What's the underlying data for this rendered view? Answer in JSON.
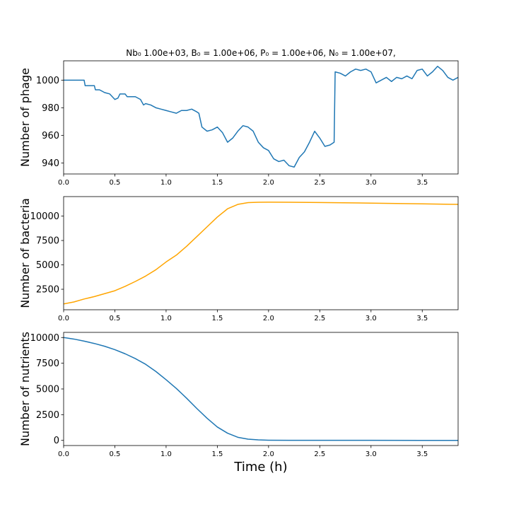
{
  "figure": {
    "title": "Nb₀ 1.00e+03, B₀ = 1.00e+06, P₀ = 1.00e+06, N₀ = 1.00e+07,",
    "xlabel": "Time (h)"
  },
  "chart_data": [
    {
      "type": "line",
      "ylabel": "Number of phage",
      "xlim": [
        0,
        3.85
      ],
      "ylim": [
        932,
        1014
      ],
      "xticks": [
        0.0,
        0.5,
        1.0,
        1.5,
        2.0,
        2.5,
        3.0,
        3.5
      ],
      "yticks": [
        940,
        960,
        980,
        1000
      ],
      "color": "#1f77b4",
      "series": [
        {
          "x": [
            0.0,
            0.2,
            0.21,
            0.3,
            0.31,
            0.35,
            0.4,
            0.45,
            0.5,
            0.53,
            0.55,
            0.6,
            0.62,
            0.7,
            0.75,
            0.78,
            0.8,
            0.85,
            0.9,
            0.95,
            1.0,
            1.05,
            1.1,
            1.15,
            1.2,
            1.25,
            1.3,
            1.32,
            1.35,
            1.4,
            1.45,
            1.5,
            1.55,
            1.6,
            1.65,
            1.7,
            1.75,
            1.8,
            1.85,
            1.9,
            1.95,
            2.0,
            2.05,
            2.1,
            2.15,
            2.2,
            2.25,
            2.3,
            2.35,
            2.4,
            2.45,
            2.5,
            2.55,
            2.6,
            2.64,
            2.65,
            2.7,
            2.75,
            2.8,
            2.85,
            2.9,
            2.95,
            3.0,
            3.05,
            3.1,
            3.15,
            3.2,
            3.25,
            3.3,
            3.35,
            3.4,
            3.45,
            3.5,
            3.55,
            3.6,
            3.65,
            3.7,
            3.75,
            3.8,
            3.85
          ],
          "y": [
            1000,
            1000,
            996,
            996,
            993,
            993,
            991,
            990,
            986,
            987,
            990,
            990,
            988,
            988,
            986,
            982,
            983,
            982,
            980,
            979,
            978,
            977,
            976,
            978,
            978,
            979,
            977,
            976,
            966,
            963,
            964,
            966,
            962,
            955,
            958,
            963,
            967,
            966,
            963,
            955,
            951,
            949,
            943,
            941,
            942,
            938,
            937,
            944,
            948,
            955,
            963,
            958,
            952,
            953,
            955,
            1006,
            1005,
            1003,
            1006,
            1008,
            1007,
            1008,
            1006,
            998,
            1000,
            1002,
            999,
            1002,
            1001,
            1003,
            1001,
            1007,
            1008,
            1003,
            1006,
            1010,
            1007,
            1002,
            1000,
            1002
          ]
        }
      ]
    },
    {
      "type": "line",
      "ylabel": "Number of bacteria",
      "xlim": [
        0,
        3.85
      ],
      "ylim": [
        400,
        12000
      ],
      "xticks": [
        0.0,
        0.5,
        1.0,
        1.5,
        2.0,
        2.5,
        3.0,
        3.5
      ],
      "yticks": [
        2500,
        5000,
        7500,
        10000
      ],
      "color": "#ffa500",
      "series": [
        {
          "x": [
            0.0,
            0.1,
            0.2,
            0.3,
            0.4,
            0.5,
            0.6,
            0.7,
            0.8,
            0.9,
            1.0,
            1.1,
            1.2,
            1.3,
            1.4,
            1.5,
            1.6,
            1.7,
            1.8,
            1.9,
            2.0,
            2.2,
            2.5,
            3.0,
            3.5,
            3.85
          ],
          "y": [
            1000,
            1200,
            1500,
            1750,
            2050,
            2350,
            2800,
            3300,
            3850,
            4500,
            5300,
            6000,
            6900,
            7900,
            8900,
            9900,
            10750,
            11200,
            11380,
            11420,
            11430,
            11420,
            11390,
            11330,
            11260,
            11200
          ]
        }
      ]
    },
    {
      "type": "line",
      "ylabel": "Number of nutrients",
      "xlim": [
        0,
        3.85
      ],
      "ylim": [
        -500,
        10500
      ],
      "xticks": [
        0.0,
        0.5,
        1.0,
        1.5,
        2.0,
        2.5,
        3.0,
        3.5
      ],
      "yticks": [
        0,
        2500,
        5000,
        7500,
        10000
      ],
      "color": "#1f77b4",
      "series": [
        {
          "x": [
            0.0,
            0.1,
            0.2,
            0.3,
            0.4,
            0.5,
            0.6,
            0.7,
            0.8,
            0.9,
            1.0,
            1.1,
            1.2,
            1.3,
            1.4,
            1.5,
            1.6,
            1.7,
            1.8,
            1.9,
            2.0,
            2.2,
            2.5,
            3.0,
            3.5,
            3.85
          ],
          "y": [
            10000,
            9850,
            9650,
            9420,
            9150,
            8820,
            8420,
            7950,
            7400,
            6700,
            5900,
            5050,
            4100,
            3100,
            2150,
            1300,
            700,
            300,
            120,
            50,
            20,
            10,
            5,
            3,
            2,
            2
          ]
        }
      ]
    }
  ]
}
